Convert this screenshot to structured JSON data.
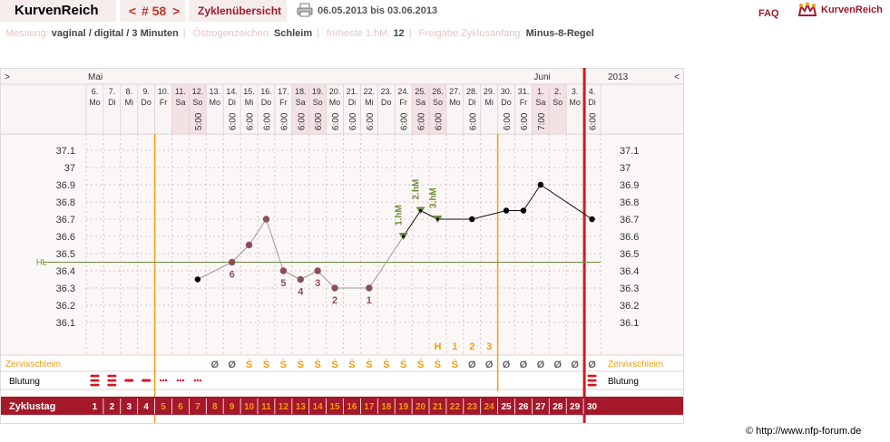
{
  "brand": "KurvenReich",
  "cycle_nav": {
    "prev": "<",
    "label": "# 58",
    "next": ">"
  },
  "overview_label": "Zyklenübersicht",
  "date_range": "06.05.2013 bis 03.06.2013",
  "faq_label": "FAQ",
  "logo_text": "KurvenReich",
  "info": {
    "messung_label": "Messung:",
    "messung_value": "vaginal / digital / 3 Minuten",
    "oestrogen_label": "Östrogenzeichen:",
    "oestrogen_value": "Schleim",
    "hm_label": "früheste 1.hM:",
    "hm_value": "12",
    "freigabe_label": "Freigabe Zyklusanfang:",
    "freigabe_value": "Minus-8-Regel"
  },
  "colors": {
    "accent": "#a4182a",
    "orange": "#f39c12",
    "grid": "#d9c3c5",
    "hl": "#6a8f3a"
  },
  "chart_data": {
    "type": "line",
    "months": [
      {
        "label": "Mai",
        "day_index": 0
      },
      {
        "label": "Juni",
        "day_index": 26
      }
    ],
    "year_label": "2013",
    "nav_left": ">",
    "nav_right": "<",
    "dates": [
      "6.",
      "7.",
      "8.",
      "9.",
      "10.",
      "11.",
      "12.",
      "13.",
      "14.",
      "15.",
      "16.",
      "17.",
      "18.",
      "19.",
      "20.",
      "21.",
      "22.",
      "23.",
      "24.",
      "25.",
      "26.",
      "27.",
      "28.",
      "29.",
      "30.",
      "31.",
      "1.",
      "2.",
      "3.",
      "4."
    ],
    "weekdays": [
      "Mo",
      "Di",
      "Mi",
      "Do",
      "Fr",
      "Sa",
      "So",
      "Mo",
      "Di",
      "Mi",
      "Do",
      "Fr",
      "Sa",
      "So",
      "Mo",
      "Di",
      "Mi",
      "Do",
      "Fr",
      "Sa",
      "So",
      "Mo",
      "Di",
      "Mi",
      "Do",
      "Fr",
      "Sa",
      "So",
      "Mo",
      "Di"
    ],
    "times": [
      "",
      "",
      "",
      "",
      "",
      "",
      "5:00",
      "",
      "6:00",
      "6:00",
      "6:00",
      "6:00",
      "6:00",
      "6:00",
      "6:00",
      "6:00",
      "6:00",
      "",
      "6:00",
      "6:00",
      "6:00",
      "",
      "6:00",
      "",
      "6:00",
      "6:00",
      "7:00",
      "",
      "",
      "6:00"
    ],
    "yticks": [
      "37.1",
      "37",
      "36.9",
      "36.8",
      "36.7",
      "36.6",
      "36.5",
      "36.4",
      "36.3",
      "36.2",
      "36.1"
    ],
    "ylim": [
      36.0,
      37.15
    ],
    "hl_label": "HL",
    "hl_value": 36.45,
    "temps": [
      {
        "day": 7,
        "t": 36.35,
        "style": "black"
      },
      {
        "day": 9,
        "t": 36.45,
        "style": "grey",
        "label": "6"
      },
      {
        "day": 10,
        "t": 36.55,
        "style": "grey"
      },
      {
        "day": 11,
        "t": 36.7,
        "style": "grey"
      },
      {
        "day": 12,
        "t": 36.4,
        "style": "grey",
        "label": "5"
      },
      {
        "day": 13,
        "t": 36.35,
        "style": "grey",
        "label": "4"
      },
      {
        "day": 14,
        "t": 36.4,
        "style": "grey",
        "label": "3"
      },
      {
        "day": 15,
        "t": 36.3,
        "style": "grey",
        "label": "2"
      },
      {
        "day": 17,
        "t": 36.3,
        "style": "grey",
        "label": "1"
      },
      {
        "day": 19,
        "t": 36.6,
        "style": "hm",
        "label": "1.hM"
      },
      {
        "day": 20,
        "t": 36.75,
        "style": "hm",
        "label": "2.hM"
      },
      {
        "day": 21,
        "t": 36.7,
        "style": "hm",
        "label": "3.hM"
      },
      {
        "day": 23,
        "t": 36.7,
        "style": "black"
      },
      {
        "day": 25,
        "t": 36.75,
        "style": "black"
      },
      {
        "day": 26,
        "t": 36.75,
        "style": "black"
      },
      {
        "day": 27,
        "t": 36.9,
        "style": "black"
      },
      {
        "day": 30,
        "t": 36.7,
        "style": "black"
      }
    ],
    "peak_labels": [
      {
        "day": 21,
        "text": "H"
      },
      {
        "day": 22,
        "text": "1"
      },
      {
        "day": 23,
        "text": "2"
      },
      {
        "day": 24,
        "text": "3"
      }
    ],
    "zervix_label": "Zervixschleim",
    "zervix": [
      "",
      "",
      "",
      "",
      "",
      "",
      "",
      "Ø",
      "Ø",
      "Ṡ",
      "Ṡ",
      "Ṡ",
      "Ṡ",
      "Ṡ",
      "Ṡ",
      "Ṡ",
      "Ṡ",
      "Ṡ",
      "Ṡ",
      "Ṡ",
      "Ṡ",
      "Ṡ",
      "Ø",
      "Ø",
      "Ø",
      "Ø",
      "Ø",
      "Ø",
      "Ø",
      "Ø"
    ],
    "bleeding_label": "Blutung",
    "bleeding": [
      "heavy",
      "heavy",
      "medium",
      "medium",
      "light",
      "light",
      "light",
      "",
      "",
      "",
      "",
      "",
      "",
      "",
      "",
      "",
      "",
      "",
      "",
      "",
      "",
      "",
      "",
      "",
      "",
      "",
      "",
      "",
      "",
      "heavy"
    ],
    "cycle_label": "Zyklustag",
    "cycle_days": [
      "1",
      "2",
      "3",
      "4",
      "5",
      "6",
      "7",
      "8",
      "9",
      "10",
      "11",
      "12",
      "13",
      "14",
      "15",
      "16",
      "17",
      "18",
      "19",
      "20",
      "21",
      "22",
      "23",
      "24",
      "25",
      "26",
      "27",
      "28",
      "29",
      "30"
    ],
    "shaded_days": [
      5,
      6,
      12,
      13,
      19,
      20,
      26,
      27
    ]
  },
  "copyright": "© http://www.nfp-forum.de"
}
